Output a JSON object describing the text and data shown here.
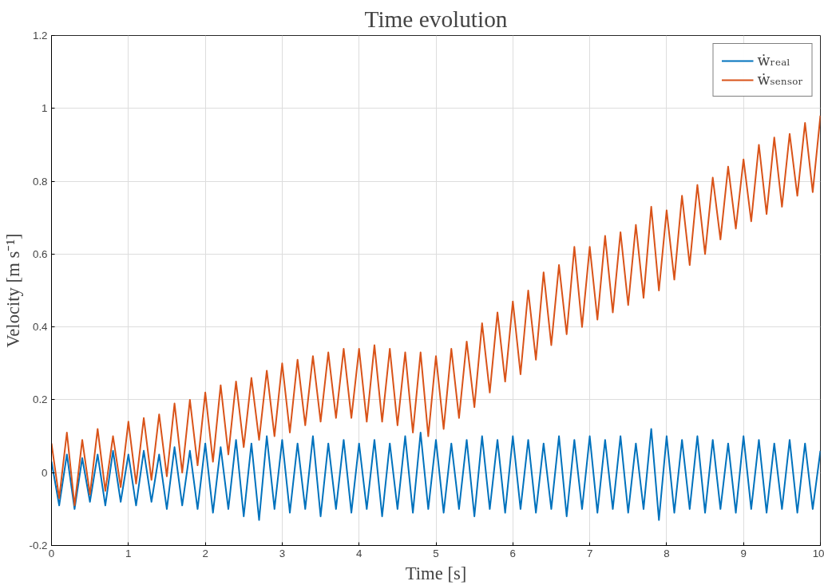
{
  "chart_data": {
    "type": "line",
    "title": "Time evolution",
    "xlabel": "Time [s]",
    "ylabel": "Velocity [m s⁻¹]",
    "x": [
      0,
      0.1,
      0.2,
      0.3,
      0.4,
      0.5,
      0.6,
      0.7,
      0.8,
      0.9,
      1,
      1.1,
      1.2,
      1.3,
      1.4,
      1.5,
      1.6,
      1.7,
      1.8,
      1.9,
      2,
      2.1,
      2.2,
      2.3,
      2.4,
      2.5,
      2.6,
      2.7,
      2.8,
      2.9,
      3,
      3.1,
      3.2,
      3.3,
      3.4,
      3.5,
      3.6,
      3.7,
      3.8,
      3.9,
      4,
      4.1,
      4.2,
      4.3,
      4.4,
      4.5,
      4.6,
      4.7,
      4.8,
      4.9,
      5,
      5.1,
      5.2,
      5.3,
      5.4,
      5.5,
      5.6,
      5.7,
      5.8,
      5.9,
      6,
      6.1,
      6.2,
      6.3,
      6.4,
      6.5,
      6.6,
      6.7,
      6.8,
      6.9,
      7,
      7.1,
      7.2,
      7.3,
      7.4,
      7.5,
      7.6,
      7.7,
      7.8,
      7.9,
      8,
      8.1,
      8.2,
      8.3,
      8.4,
      8.5,
      8.6,
      8.7,
      8.8,
      8.9,
      9,
      9.1,
      9.2,
      9.3,
      9.4,
      9.5,
      9.6,
      9.7,
      9.8,
      9.9,
      10
    ],
    "series": [
      {
        "name": "ẇᵣₑₐₗ",
        "color": "#0072bd",
        "values": [
          0.03,
          -0.09,
          0.05,
          -0.1,
          0.04,
          -0.08,
          0.05,
          -0.09,
          0.06,
          -0.08,
          0.05,
          -0.09,
          0.06,
          -0.08,
          0.05,
          -0.1,
          0.07,
          -0.09,
          0.06,
          -0.1,
          0.08,
          -0.11,
          0.07,
          -0.1,
          0.09,
          -0.12,
          0.08,
          -0.13,
          0.1,
          -0.1,
          0.09,
          -0.11,
          0.08,
          -0.1,
          0.1,
          -0.12,
          0.08,
          -0.1,
          0.09,
          -0.11,
          0.08,
          -0.1,
          0.09,
          -0.12,
          0.08,
          -0.1,
          0.1,
          -0.11,
          0.11,
          -0.1,
          0.09,
          -0.11,
          0.08,
          -0.1,
          0.09,
          -0.12,
          0.1,
          -0.1,
          0.09,
          -0.11,
          0.1,
          -0.1,
          0.09,
          -0.11,
          0.08,
          -0.1,
          0.1,
          -0.12,
          0.09,
          -0.1,
          0.1,
          -0.11,
          0.09,
          -0.1,
          0.1,
          -0.11,
          0.08,
          -0.1,
          0.12,
          -0.13,
          0.1,
          -0.11,
          0.09,
          -0.1,
          0.1,
          -0.11,
          0.09,
          -0.1,
          0.08,
          -0.11,
          0.1,
          -0.1,
          0.09,
          -0.11,
          0.08,
          -0.1,
          0.09,
          -0.11,
          0.08,
          -0.1,
          0.06
        ]
      },
      {
        "name": "ẇₛₑₙₛₒᵣ",
        "color": "#d95319",
        "values": [
          0.08,
          -0.07,
          0.11,
          -0.09,
          0.09,
          -0.06,
          0.12,
          -0.05,
          0.1,
          -0.04,
          0.14,
          -0.03,
          0.15,
          -0.02,
          0.16,
          -0.01,
          0.19,
          0,
          0.2,
          0.02,
          0.22,
          0.03,
          0.24,
          0.05,
          0.25,
          0.07,
          0.26,
          0.09,
          0.28,
          0.1,
          0.3,
          0.11,
          0.31,
          0.13,
          0.32,
          0.14,
          0.33,
          0.15,
          0.34,
          0.15,
          0.34,
          0.14,
          0.35,
          0.14,
          0.34,
          0.13,
          0.33,
          0.11,
          0.33,
          0.1,
          0.32,
          0.12,
          0.34,
          0.15,
          0.36,
          0.18,
          0.41,
          0.22,
          0.44,
          0.25,
          0.47,
          0.27,
          0.5,
          0.31,
          0.55,
          0.35,
          0.57,
          0.38,
          0.62,
          0.4,
          0.62,
          0.42,
          0.65,
          0.44,
          0.66,
          0.46,
          0.68,
          0.48,
          0.73,
          0.5,
          0.72,
          0.53,
          0.76,
          0.57,
          0.79,
          0.6,
          0.81,
          0.64,
          0.84,
          0.67,
          0.86,
          0.69,
          0.9,
          0.71,
          0.92,
          0.73,
          0.93,
          0.76,
          0.96,
          0.77,
          0.98
        ]
      }
    ],
    "xlim": [
      0,
      10
    ],
    "xticks": [
      0,
      1,
      2,
      3,
      4,
      5,
      6,
      7,
      8,
      9,
      10
    ],
    "ylim": [
      -0.2,
      1.2
    ],
    "yticks": [
      -0.2,
      0,
      0.2,
      0.4,
      0.6,
      0.8,
      1,
      1.2
    ],
    "grid": true,
    "legend": "top right",
    "line_style": "solid"
  }
}
